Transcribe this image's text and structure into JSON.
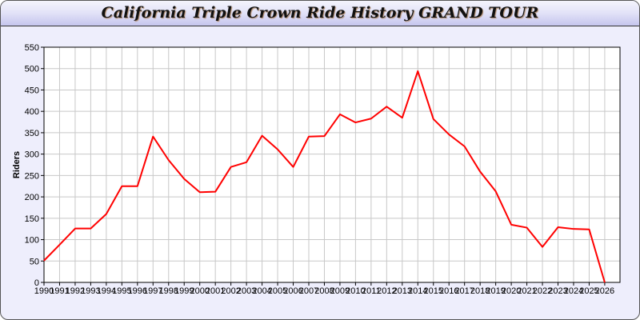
{
  "chart_data": {
    "type": "line",
    "title": "California Triple Crown Ride History GRAND TOUR",
    "xlabel": "",
    "ylabel": "Riders",
    "ylim": [
      0,
      550
    ],
    "yticks": [
      0,
      50,
      100,
      150,
      200,
      250,
      300,
      350,
      400,
      450,
      500,
      550
    ],
    "grid": true,
    "x": [
      1990,
      1991,
      1992,
      1993,
      1994,
      1995,
      1996,
      1997,
      1998,
      1999,
      2000,
      2001,
      2002,
      2003,
      2004,
      2005,
      2006,
      2007,
      2008,
      2009,
      2010,
      2011,
      2012,
      2013,
      2014,
      2015,
      2016,
      2017,
      2018,
      2019,
      2020,
      2021,
      2022,
      2023,
      2024,
      2025,
      2026
    ],
    "series": [
      {
        "color": "#ff0000",
        "values": [
          51,
          88,
          126,
          126,
          160,
          225,
          225,
          341,
          286,
          242,
          211,
          212,
          270,
          281,
          343,
          311,
          270,
          341,
          342,
          393,
          374,
          383,
          411,
          385,
          494,
          382,
          346,
          318,
          259,
          213,
          135,
          128,
          83,
          129,
          125,
          124,
          0
        ]
      }
    ]
  }
}
